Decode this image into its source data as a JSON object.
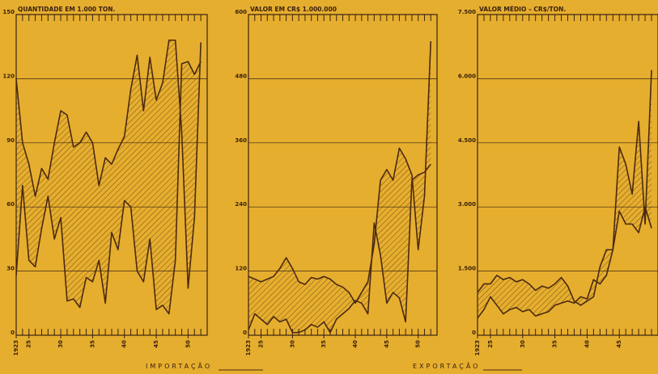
{
  "chart_data": [
    {
      "type": "line",
      "title": "QUANTIDADE EM 1.000 TON.",
      "x": [
        1923,
        1924,
        1925,
        1926,
        1927,
        1928,
        1929,
        1930,
        1931,
        1932,
        1933,
        1934,
        1935,
        1936,
        1937,
        1938,
        1939,
        1940,
        1941,
        1942,
        1943,
        1944,
        1945,
        1946,
        1947,
        1948,
        1949,
        1950,
        1951,
        1952
      ],
      "series": [
        {
          "name": "IMPORTAÇÃO",
          "color": "#4a2a12",
          "values": [
            120,
            90,
            80,
            65,
            78,
            73,
            90,
            105,
            103,
            88,
            90,
            95,
            90,
            70,
            83,
            80,
            87,
            93,
            115,
            131,
            105,
            130,
            110,
            118,
            138,
            138,
            95,
            22,
            55,
            137
          ]
        },
        {
          "name": "EXPORTAÇÃO",
          "color": "#4a2a12",
          "values": [
            28,
            70,
            35,
            32,
            50,
            65,
            45,
            55,
            16,
            17,
            13,
            27,
            25,
            35,
            15,
            48,
            40,
            63,
            60,
            30,
            25,
            45,
            12,
            14,
            10,
            35,
            127,
            128,
            122,
            128
          ]
        }
      ],
      "xlim": [
        1923,
        1953
      ],
      "ylim": [
        0,
        150
      ],
      "xticks": [
        1923,
        {
          "value": 1925,
          "label": "25"
        },
        {
          "value": 1930,
          "label": "30"
        },
        {
          "value": 1935,
          "label": "35"
        },
        {
          "value": 1940,
          "label": "40"
        },
        {
          "value": 1945,
          "label": "45"
        },
        {
          "value": 1950,
          "label": "50"
        }
      ],
      "yticks": [
        0,
        30,
        60,
        90,
        120,
        150
      ],
      "grid": true
    },
    {
      "type": "line",
      "title": "VALOR EM CR$ 1.000.000",
      "x": [
        1923,
        1924,
        1925,
        1926,
        1927,
        1928,
        1929,
        1930,
        1931,
        1932,
        1933,
        1934,
        1935,
        1936,
        1937,
        1938,
        1939,
        1940,
        1941,
        1942,
        1943,
        1944,
        1945,
        1946,
        1947,
        1948,
        1949,
        1950,
        1951,
        1952
      ],
      "series": [
        {
          "color": "#4a2a12",
          "values": [
            110,
            105,
            100,
            105,
            110,
            125,
            145,
            125,
            100,
            95,
            108,
            105,
            110,
            105,
            95,
            90,
            80,
            60,
            80,
            100,
            170,
            290,
            310,
            290,
            350,
            330,
            300,
            160,
            260,
            550
          ]
        },
        {
          "color": "#4a2a12",
          "values": [
            10,
            40,
            30,
            20,
            35,
            25,
            30,
            5,
            5,
            10,
            20,
            15,
            25,
            5,
            30,
            40,
            50,
            65,
            60,
            40,
            210,
            150,
            60,
            80,
            70,
            25,
            290,
            300,
            305,
            320
          ]
        }
      ],
      "xlim": [
        1923,
        1953
      ],
      "ylim": [
        0,
        600
      ],
      "xticks": [
        1923,
        {
          "value": 1925,
          "label": "25"
        },
        {
          "value": 1930,
          "label": "30"
        },
        {
          "value": 1935,
          "label": "35"
        },
        {
          "value": 1940,
          "label": "40"
        },
        {
          "value": 1945,
          "label": "45"
        },
        {
          "value": 1950,
          "label": "50"
        }
      ],
      "yticks": [
        0,
        120,
        240,
        360,
        480,
        600
      ],
      "grid": true
    },
    {
      "type": "line",
      "title": "VALOR MÉDIO – CR$/TON.",
      "x": [
        1923,
        1924,
        1925,
        1926,
        1927,
        1928,
        1929,
        1930,
        1931,
        1932,
        1933,
        1934,
        1935,
        1936,
        1937,
        1938,
        1939,
        1940,
        1941,
        1942,
        1943,
        1944,
        1945,
        1946,
        1947,
        1948,
        1949,
        1950
      ],
      "series": [
        {
          "color": "#4a2a12",
          "values": [
            1000,
            1200,
            1200,
            1400,
            1300,
            1350,
            1250,
            1300,
            1200,
            1050,
            1150,
            1100,
            1200,
            1350,
            1150,
            800,
            700,
            800,
            900,
            1600,
            2000,
            2000,
            4400,
            4000,
            3300,
            5000,
            2600,
            6200
          ]
        },
        {
          "color": "#4a2a12",
          "values": [
            400,
            600,
            900,
            700,
            500,
            600,
            650,
            550,
            600,
            450,
            500,
            550,
            700,
            750,
            800,
            750,
            900,
            850,
            1300,
            1200,
            1400,
            2000,
            2900,
            2600,
            2600,
            2400,
            3000,
            2500
          ]
        }
      ],
      "xlim": [
        1923,
        1951
      ],
      "ylim": [
        0,
        7500
      ],
      "xticks": [
        1923,
        {
          "value": 1925,
          "label": "25"
        },
        {
          "value": 1930,
          "label": "30"
        },
        {
          "value": 1935,
          "label": "35"
        },
        {
          "value": 1940,
          "label": "40"
        },
        {
          "value": 1945,
          "label": "45"
        }
      ],
      "yticks": [
        0,
        {
          "value": 1500,
          "label": "1.500"
        },
        {
          "value": 3000,
          "label": "3.000"
        },
        {
          "value": 4500,
          "label": "4.500"
        },
        {
          "value": 6000,
          "label": "6.000"
        },
        {
          "value": 7500,
          "label": "7.500"
        }
      ],
      "grid": true
    }
  ]
}
